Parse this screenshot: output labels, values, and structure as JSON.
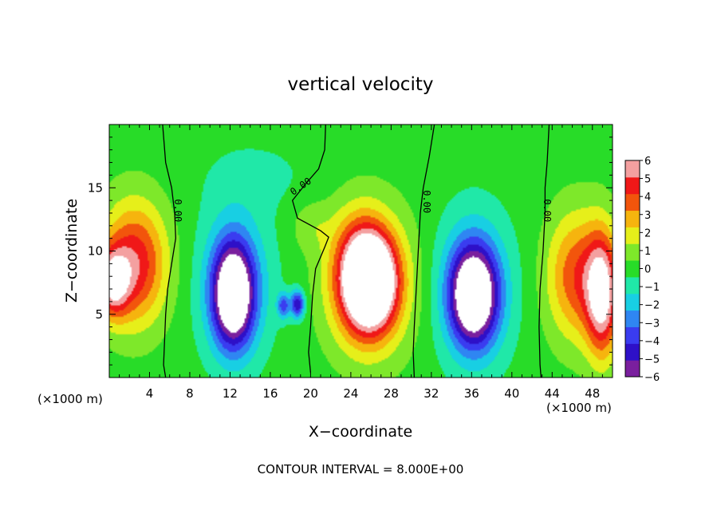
{
  "chart_data": {
    "type": "heatmap",
    "title": "vertical velocity",
    "xlabel": "X−coordinate",
    "ylabel": "Z−coordinate",
    "x_unit_left": "(×1000 m)",
    "x_unit_right": "(×1000 m)",
    "xlim": [
      0,
      50
    ],
    "ylim": [
      0,
      20
    ],
    "x_ticks": [
      4,
      8,
      12,
      16,
      20,
      24,
      28,
      32,
      36,
      40,
      44,
      48
    ],
    "x_tick_labels": [
      "4",
      "8",
      "12",
      "16",
      "20",
      "24",
      "28",
      "32",
      "36",
      "40",
      "44",
      "48"
    ],
    "y_ticks": [
      5,
      10,
      15
    ],
    "y_tick_labels": [
      "5",
      "10",
      "15"
    ],
    "colorbar": {
      "min": -6,
      "max": 6,
      "ticks": [
        6,
        5,
        4,
        3,
        2,
        1,
        0,
        -1,
        -2,
        -3,
        -4,
        -5,
        -6
      ],
      "tick_labels": [
        "6",
        "5",
        "4",
        "3",
        "2",
        "1",
        "0",
        "−1",
        "−2",
        "−3",
        "−4",
        "−5",
        "−6"
      ],
      "colors": [
        "#7a1f9e",
        "#2e10c8",
        "#3a3cf0",
        "#2f86f2",
        "#18cfe3",
        "#20e8a8",
        "#28dc28",
        "#7ee82a",
        "#e6ef1a",
        "#f6b40e",
        "#f2550c",
        "#f01818",
        "#f4a0a0"
      ]
    },
    "contour_labels": [
      {
        "x": 6.5,
        "z": 13.2,
        "text": "0.00"
      },
      {
        "x": 19.2,
        "z": 14.9,
        "text": "0.00"
      },
      {
        "x": 31.2,
        "z": 13.9,
        "text": "0.00"
      },
      {
        "x": 43.2,
        "z": 13.2,
        "text": "0.00"
      }
    ],
    "zero_contours": [
      [
        [
          5.3,
          20
        ],
        [
          5.6,
          17
        ],
        [
          6.2,
          15
        ],
        [
          6.5,
          13
        ],
        [
          6.6,
          11
        ],
        [
          6.2,
          9
        ],
        [
          5.8,
          7
        ],
        [
          5.6,
          5
        ],
        [
          5.5,
          3
        ],
        [
          5.4,
          1
        ],
        [
          5.6,
          0
        ]
      ],
      [
        [
          21.5,
          20
        ],
        [
          21.4,
          18
        ],
        [
          20.8,
          16.5
        ],
        [
          19.5,
          15.3
        ],
        [
          18.2,
          14.0
        ],
        [
          18.7,
          12.6
        ],
        [
          21.0,
          11.6
        ],
        [
          21.8,
          11.1
        ],
        [
          21.4,
          10.3
        ],
        [
          20.5,
          8.6
        ],
        [
          20.2,
          6.5
        ],
        [
          20.0,
          4.0
        ],
        [
          19.8,
          2.0
        ],
        [
          20.0,
          0.4
        ]
      ],
      [
        [
          32.3,
          20
        ],
        [
          31.8,
          17.5
        ],
        [
          31.2,
          15
        ],
        [
          30.9,
          13
        ],
        [
          30.7,
          10
        ],
        [
          30.5,
          7
        ],
        [
          30.3,
          4
        ],
        [
          30.2,
          2
        ],
        [
          30.3,
          0
        ]
      ],
      [
        [
          43.7,
          20
        ],
        [
          43.5,
          17
        ],
        [
          43.3,
          15
        ],
        [
          43.3,
          13
        ],
        [
          43.1,
          10
        ],
        [
          42.8,
          7
        ],
        [
          42.7,
          4
        ],
        [
          42.8,
          1
        ],
        [
          42.9,
          0
        ]
      ]
    ],
    "features": [
      {
        "x": 2.5,
        "z": 9.0,
        "sx": 3.2,
        "sy": 4.8,
        "a": 5.0
      },
      {
        "x": 0.3,
        "z": 7.5,
        "sx": 1.6,
        "sy": 2.6,
        "a": 5.0
      },
      {
        "x": 26.0,
        "z": 7.6,
        "sx": 2.4,
        "sy": 3.6,
        "a": 8.0
      },
      {
        "x": 26.0,
        "z": 7.4,
        "sx": 4.2,
        "sy": 5.6,
        "a": 3.5
      },
      {
        "x": 24.5,
        "z": 8.5,
        "sx": 2.6,
        "sy": 4.5,
        "a": 2.5
      },
      {
        "x": 49.0,
        "z": 6.5,
        "sx": 1.6,
        "sy": 4.8,
        "a": 6.0
      },
      {
        "x": 46.5,
        "z": 8.0,
        "sx": 3.0,
        "sy": 5.0,
        "a": 4.0
      },
      {
        "x": 12.3,
        "z": 6.5,
        "sx": 2.0,
        "sy": 4.0,
        "a": -7.5
      },
      {
        "x": 12.5,
        "z": 7.5,
        "sx": 3.6,
        "sy": 6.0,
        "a": -2.5
      },
      {
        "x": 18.7,
        "z": 5.8,
        "sx": 0.7,
        "sy": 1.1,
        "a": -5.0
      },
      {
        "x": 17.3,
        "z": 5.7,
        "sx": 0.6,
        "sy": 1.0,
        "a": -3.5
      },
      {
        "x": 36.2,
        "z": 6.5,
        "sx": 2.3,
        "sy": 3.8,
        "a": -7.5
      },
      {
        "x": 36.2,
        "z": 7.0,
        "sx": 3.8,
        "sy": 6.0,
        "a": -2.5
      },
      {
        "x": 20.0,
        "z": 12.0,
        "sx": 2.0,
        "sy": 2.0,
        "a": 1.0
      },
      {
        "x": 15.0,
        "z": 16.0,
        "sx": 6.0,
        "sy": 3.0,
        "a": -0.6
      }
    ],
    "footer": "CONTOUR INTERVAL = 8.000E+00"
  }
}
